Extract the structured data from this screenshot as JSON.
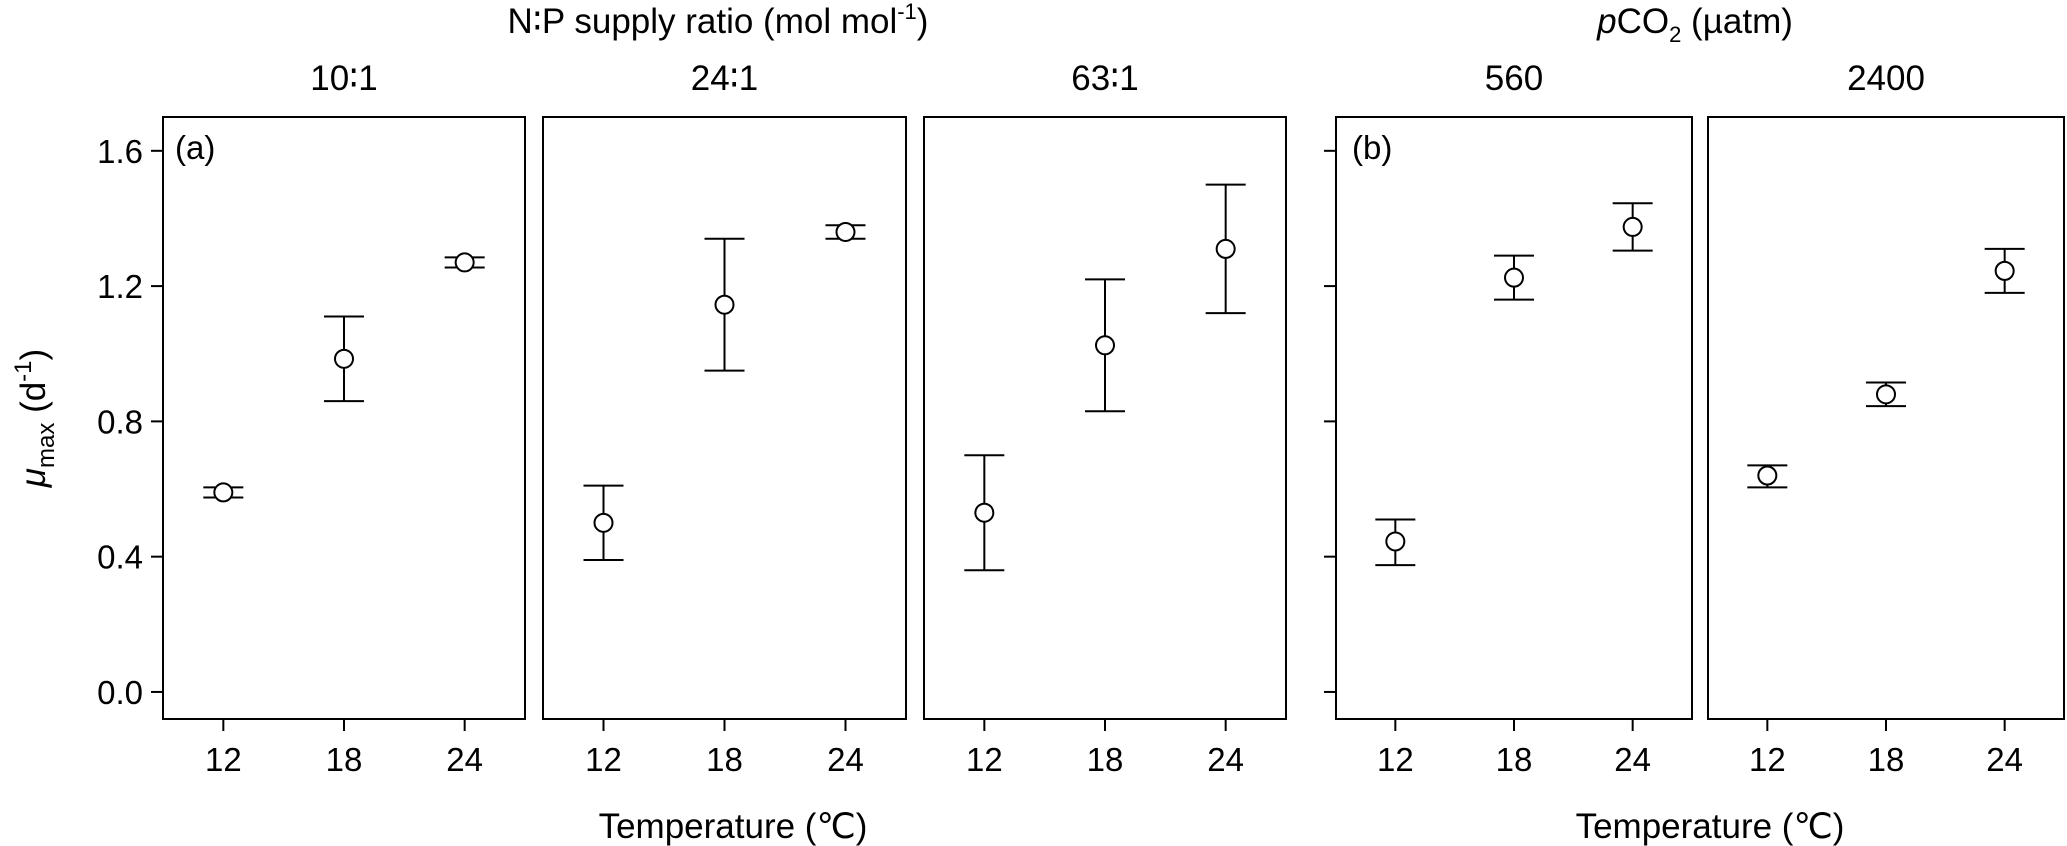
{
  "chart_data": {
    "type": "scatter",
    "groups": [
      {
        "label": "(a)",
        "header_text": "N∶P supply ratio (mol mol",
        "header_sup": "-1",
        "header_end": ")",
        "xlabel": "Temperature (℃)",
        "panels": [
          {
            "title": "10∶1",
            "x": [
              12,
              18,
              24
            ],
            "y": [
              0.59,
              0.985,
              1.27
            ],
            "err_low": [
              0.575,
              0.86,
              1.255
            ],
            "err_high": [
              0.605,
              1.11,
              1.285
            ]
          },
          {
            "title": "24∶1",
            "x": [
              12,
              18,
              24
            ],
            "y": [
              0.5,
              1.145,
              1.36
            ],
            "err_low": [
              0.39,
              0.95,
              1.34
            ],
            "err_high": [
              0.61,
              1.34,
              1.38
            ]
          },
          {
            "title": "63∶1",
            "x": [
              12,
              18,
              24
            ],
            "y": [
              0.53,
              1.025,
              1.31
            ],
            "err_low": [
              0.36,
              0.83,
              1.12
            ],
            "err_high": [
              0.7,
              1.22,
              1.5
            ]
          }
        ]
      },
      {
        "label": "(b)",
        "header_italic": "p",
        "header_text": "CO",
        "header_sub": "2",
        "header_end": " (µatm)",
        "xlabel": "Temperature (℃)",
        "panels": [
          {
            "title": "560",
            "x": [
              12,
              18,
              24
            ],
            "y": [
              0.445,
              1.225,
              1.375
            ],
            "err_low": [
              0.375,
              1.16,
              1.305
            ],
            "err_high": [
              0.51,
              1.29,
              1.445
            ]
          },
          {
            "title": "2400",
            "x": [
              12,
              18,
              24
            ],
            "y": [
              0.64,
              0.88,
              1.245
            ],
            "err_low": [
              0.605,
              0.845,
              1.18
            ],
            "err_high": [
              0.67,
              0.915,
              1.31
            ]
          }
        ]
      }
    ],
    "ylabel_main": "μ",
    "ylabel_sub": "max",
    "ylabel_unit": " (d",
    "ylabel_sup": "-1",
    "ylabel_end": ")",
    "ylim": [
      -0.08,
      1.7
    ],
    "yticks": [
      "0.0",
      "0.4",
      "0.8",
      "1.2",
      "1.6"
    ],
    "xticks": [
      "12",
      "18",
      "24"
    ],
    "grid": false,
    "marker": "open-circle"
  }
}
